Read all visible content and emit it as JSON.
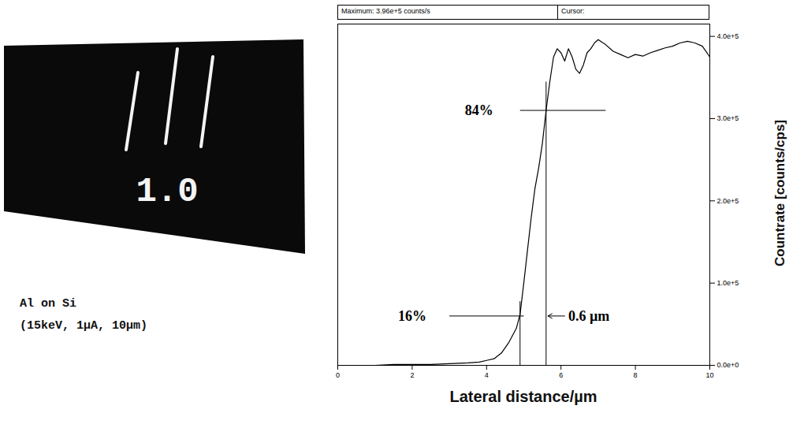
{
  "chart_data": {
    "type": "line",
    "title": "Maximum: 3.96e+5 counts/s",
    "subtitle": "Cursor:",
    "x_label": "Lateral distance/µm",
    "y_label": "Countrate [counts/cps]",
    "x": [
      0,
      0.5,
      1,
      1.5,
      2,
      2.5,
      3,
      3.5,
      3.8,
      4.0,
      4.2,
      4.4,
      4.6,
      4.8,
      4.9,
      5.0,
      5.1,
      5.2,
      5.3,
      5.4,
      5.5,
      5.6,
      5.7,
      5.8,
      5.9,
      6.0,
      6.1,
      6.2,
      6.3,
      6.4,
      6.5,
      6.6,
      6.7,
      6.8,
      6.9,
      7.0,
      7.2,
      7.4,
      7.6,
      7.8,
      8.0,
      8.2,
      8.4,
      8.6,
      8.8,
      9.0,
      9.2,
      9.4,
      9.6,
      9.8,
      10
    ],
    "values": [
      0,
      0,
      0,
      1000,
      1000,
      1000,
      2000,
      3000,
      4000,
      6000,
      8000,
      15000,
      28000,
      45000,
      62000,
      100000,
      140000,
      180000,
      215000,
      240000,
      270000,
      310000,
      345000,
      375000,
      385000,
      380000,
      370000,
      385000,
      375000,
      360000,
      355000,
      365000,
      380000,
      385000,
      392000,
      396000,
      390000,
      382000,
      378000,
      374000,
      378000,
      376000,
      380000,
      383000,
      386000,
      388000,
      392000,
      394000,
      392000,
      388000,
      375000
    ],
    "color": "#000000",
    "xlim": [
      0,
      10
    ],
    "xticks": [
      0,
      2,
      4,
      6,
      8,
      10
    ],
    "ylim": [
      0,
      415000
    ],
    "yticks": [
      {
        "value": 0,
        "label": "0.0e+0"
      },
      {
        "value": 100000,
        "label": "1.0e+5"
      },
      {
        "value": 200000,
        "label": "2.0e+5"
      },
      {
        "value": 300000,
        "label": "3.0e+5"
      },
      {
        "value": 400000,
        "label": "4.0e+5"
      }
    ],
    "grid": false,
    "image_label": "1.0",
    "caption": [
      "Al on Si",
      "(15keV, 1µA, 10µm)"
    ],
    "annotations": [
      {
        "text": "84%",
        "x": 3.8,
        "y": 310000
      },
      {
        "text": "16%",
        "x": 2.0,
        "y": 60000
      },
      {
        "text": "0.6 µm",
        "x": 6.75,
        "y": 60000
      }
    ],
    "guides": [
      {
        "x": [
          4.9,
          7.2
        ],
        "y": [
          310000,
          310000
        ]
      },
      {
        "x": [
          3.0,
          5.0
        ],
        "y": [
          60000,
          60000
        ]
      },
      {
        "x": [
          4.9,
          4.9
        ],
        "y": [
          0,
          78000
        ]
      },
      {
        "x": [
          5.6,
          5.6
        ],
        "y": [
          0,
          345000
        ]
      },
      {
        "x": [
          6.1,
          5.65
        ],
        "y": [
          60000,
          60000
        ],
        "marker": "arrow"
      }
    ]
  }
}
